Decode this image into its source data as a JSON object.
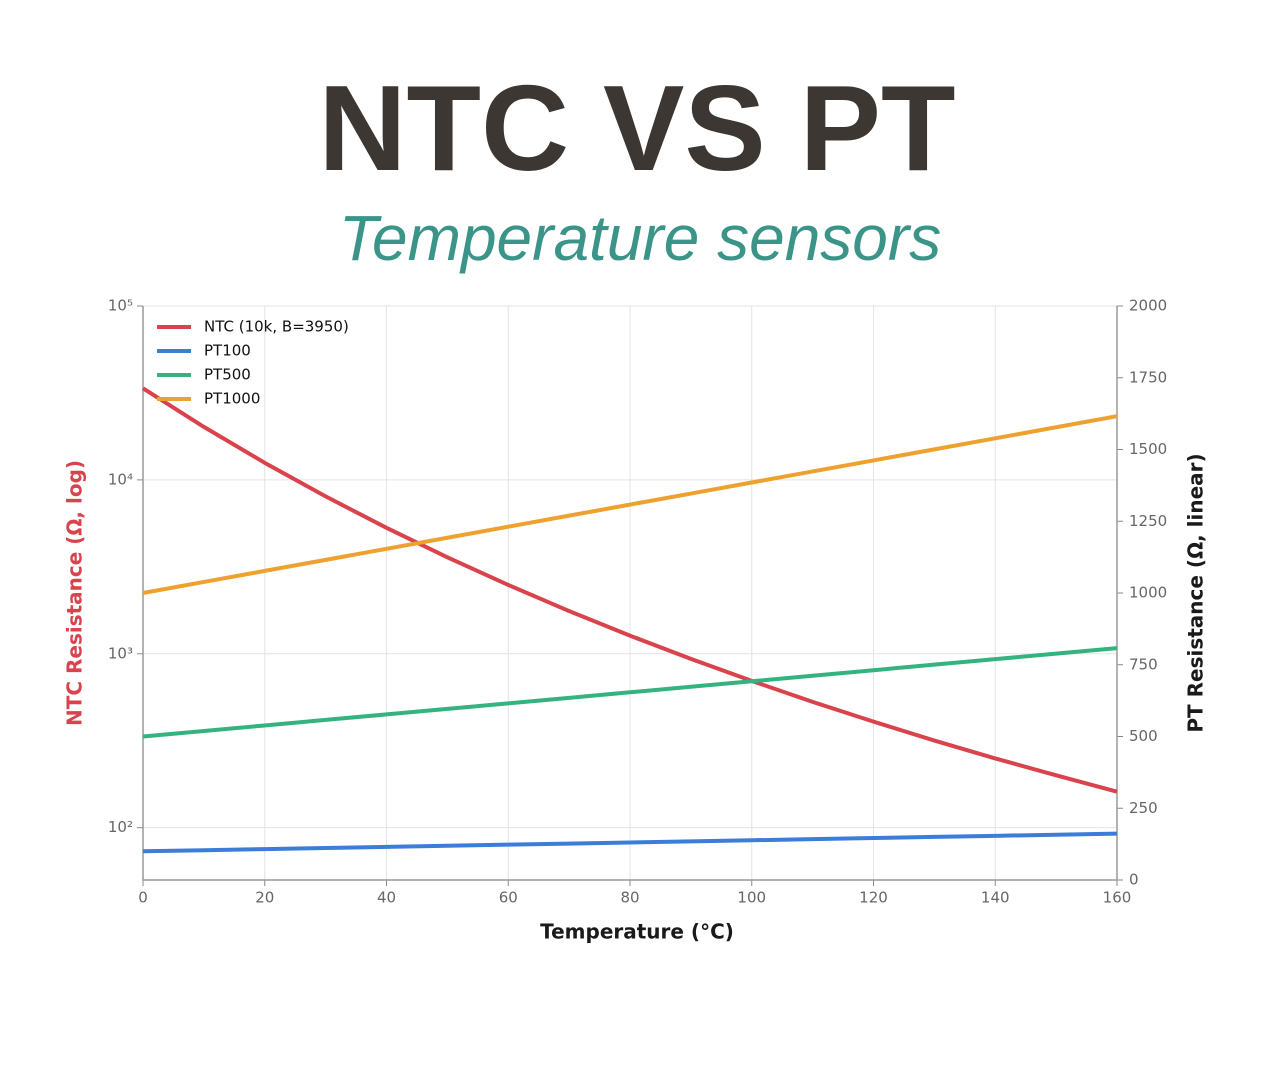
{
  "chart_data": {
    "type": "line",
    "title": "NTC VS PT",
    "subtitle": "Temperature sensors",
    "xlabel": "Temperature (°C)",
    "ylabel": "NTC Resistance (Ω, log)",
    "y2label": "PT Resistance (Ω, linear)",
    "x": [
      0,
      10,
      20,
      30,
      40,
      50,
      60,
      70,
      80,
      90,
      100,
      110,
      120,
      130,
      140,
      150,
      160
    ],
    "xlim": [
      0,
      160
    ],
    "xticks": [
      0,
      20,
      40,
      60,
      80,
      100,
      120,
      140,
      160
    ],
    "ylim": [
      50,
      100000
    ],
    "yscale": "log",
    "yticks": [
      {
        "value": 100,
        "label": "10²"
      },
      {
        "value": 1000,
        "label": "10³"
      },
      {
        "value": 10000,
        "label": "10⁴"
      },
      {
        "value": 100000,
        "label": "10⁵"
      }
    ],
    "y2lim": [
      0,
      2000
    ],
    "y2ticks": [
      0,
      250,
      500,
      750,
      1000,
      1250,
      1500,
      1750,
      2000
    ],
    "grid": true,
    "legend": "upper left",
    "series": [
      {
        "name": "NTC (10k, B=3950)",
        "color": "#d9434b",
        "values": [
          33620,
          20176,
          12535,
          8037,
          5303,
          3588,
          2487,
          1760,
          1271,
          934,
          698,
          529,
          407,
          317,
          250,
          200,
          161
        ]
      },
      {
        "name": "PT100",
        "color": "#3b7dd8",
        "axis": "y2",
        "values": [
          100,
          103.85,
          107.7,
          111.55,
          115.4,
          119.25,
          123.1,
          126.95,
          130.8,
          134.65,
          138.5,
          142.35,
          146.2,
          150.05,
          153.9,
          157.75,
          161.6
        ]
      },
      {
        "name": "PT500",
        "color": "#35b27f",
        "axis": "y2",
        "values": [
          500,
          519.25,
          538.5,
          557.75,
          577,
          596.25,
          615.5,
          634.75,
          654,
          673.25,
          692.5,
          711.75,
          731,
          750.25,
          769.5,
          788.75,
          808
        ]
      },
      {
        "name": "PT1000",
        "color": "#eda12f",
        "axis": "y2",
        "values": [
          1000,
          1038.5,
          1077,
          1115.5,
          1154,
          1192.5,
          1231,
          1269.5,
          1308,
          1346.5,
          1385,
          1423.5,
          1462,
          1500.5,
          1539,
          1577.5,
          1616
        ]
      }
    ]
  }
}
